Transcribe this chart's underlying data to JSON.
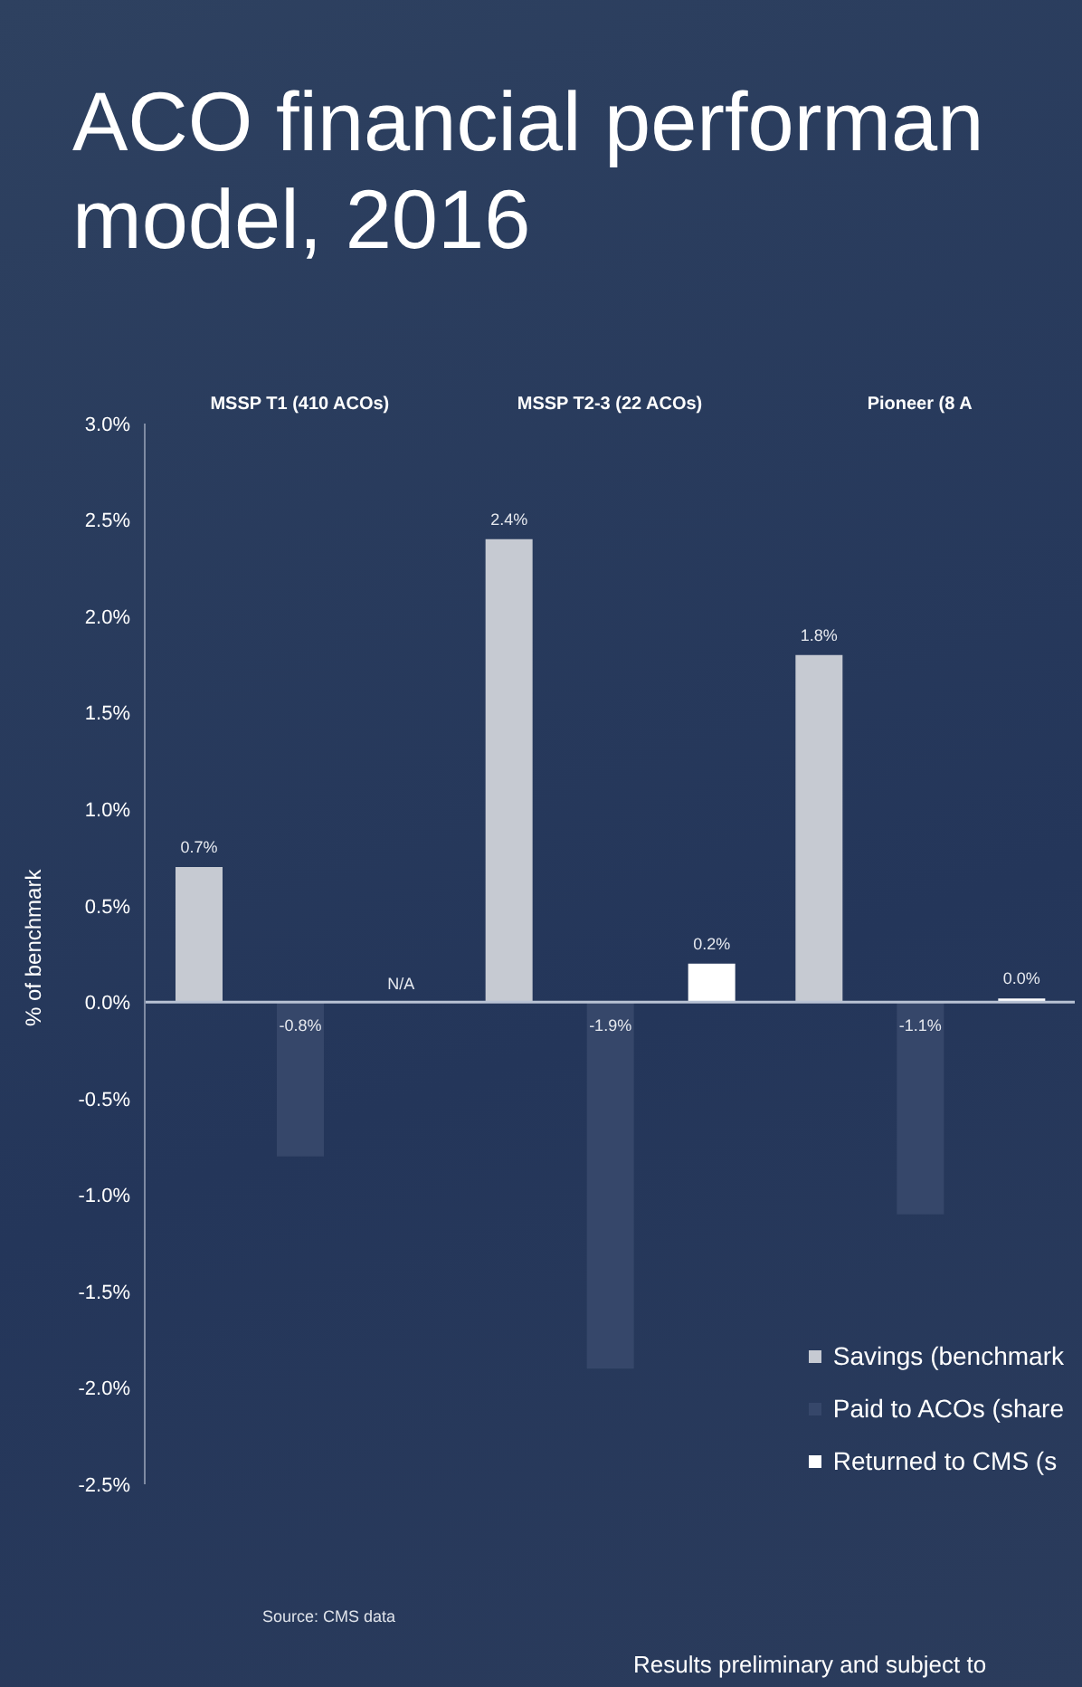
{
  "chart_data": {
    "type": "bar",
    "title": "ACO financial performan\nmodel, 2016",
    "ylabel": "% of benchmark",
    "categories": [
      "MSSP T1 (410 ACOs)",
      "MSSP T2-3 (22 ACOs)",
      "Pioneer (8 A"
    ],
    "series": [
      {
        "name": "Savings (benchmark",
        "color": "#c6cad2",
        "values": [
          0.7,
          2.4,
          1.8
        ],
        "value_labels": [
          "0.7%",
          "2.4%",
          "1.8%"
        ]
      },
      {
        "name": "Paid to ACOs (share",
        "color": "#36476a",
        "values": [
          -0.8,
          -1.9,
          -1.1
        ],
        "value_labels": [
          "-0.8%",
          "-1.9%",
          "-1.1%"
        ]
      },
      {
        "name": "Returned to CMS (s",
        "color": "#ffffff",
        "values": [
          null,
          0.2,
          0.0
        ],
        "value_labels": [
          "N/A",
          "0.2%",
          "0.0%"
        ]
      }
    ],
    "ylim": [
      -2.5,
      3.0
    ],
    "yticks": [
      {
        "value": -2.5,
        "label": "-2.5%"
      },
      {
        "value": -2.0,
        "label": "-2.0%"
      },
      {
        "value": -1.5,
        "label": "-1.5%"
      },
      {
        "value": -1.0,
        "label": "-1.0%"
      },
      {
        "value": -0.5,
        "label": "-0.5%"
      },
      {
        "value": 0,
        "label": "0.0%"
      },
      {
        "value": 0.5,
        "label": "0.5%"
      },
      {
        "value": 1.0,
        "label": "1.0%"
      },
      {
        "value": 1.5,
        "label": "1.5%"
      },
      {
        "value": 2.0,
        "label": "2.0%"
      },
      {
        "value": 2.5,
        "label": "2.5%"
      },
      {
        "value": 3.0,
        "label": "3.0%"
      }
    ],
    "ref_lines": [
      {
        "axis": "y",
        "value": 0,
        "color": "#b8c2d4"
      }
    ],
    "grid": false,
    "legend": "bottom right",
    "annotations": [
      "Source: CMS data",
      "Results preliminary and subject to"
    ]
  }
}
